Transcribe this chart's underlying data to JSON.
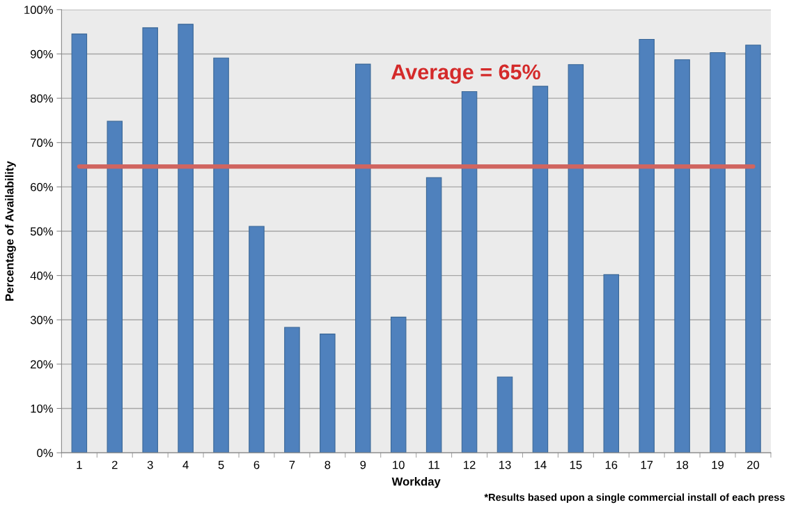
{
  "chart_data": {
    "type": "bar",
    "xlabel": "Workday",
    "ylabel": "Percentage of Availability",
    "categories": [
      "1",
      "2",
      "3",
      "4",
      "5",
      "6",
      "7",
      "8",
      "9",
      "10",
      "11",
      "12",
      "13",
      "14",
      "15",
      "16",
      "17",
      "18",
      "19",
      "20"
    ],
    "series": [
      {
        "color": "#4f81bd",
        "values": [
          94.5,
          74.8,
          95.9,
          96.7,
          89.1,
          51.1,
          28.3,
          26.8,
          87.7,
          30.6,
          62.1,
          81.5,
          17.1,
          82.7,
          87.6,
          40.2,
          93.3,
          88.7,
          90.3,
          92.0
        ]
      }
    ],
    "ylim": [
      0,
      100
    ],
    "yticks": [
      {
        "value": 0,
        "label": "0%"
      },
      {
        "value": 10,
        "label": "10%"
      },
      {
        "value": 20,
        "label": "20%"
      },
      {
        "value": 30,
        "label": "30%"
      },
      {
        "value": 40,
        "label": "40%"
      },
      {
        "value": 50,
        "label": "50%"
      },
      {
        "value": 60,
        "label": "60%"
      },
      {
        "value": 70,
        "label": "70%"
      },
      {
        "value": 80,
        "label": "80%"
      },
      {
        "value": 90,
        "label": "90%"
      },
      {
        "value": 100,
        "label": "100%"
      }
    ],
    "grid": "y",
    "legend": false,
    "ref_lines": [
      {
        "axis": "y",
        "value": 64.6,
        "color": "#d06560"
      }
    ],
    "annotations": [
      "Average = 65%",
      "*Results based upon a single commercial install of each press"
    ]
  }
}
